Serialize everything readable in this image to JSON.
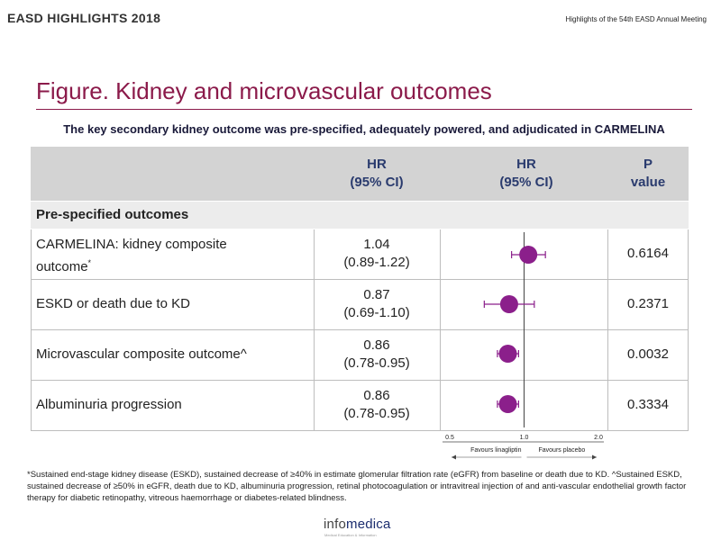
{
  "header": {
    "left": "EASD HIGHLIGHTS 2018",
    "right": "Highlights of the 54th EASD Annual Meeting"
  },
  "title": "Figure. Kidney and microvascular outcomes",
  "subtitle": "The key secondary kidney outcome was pre-specified, adequately powered, and adjudicated in CARMELINA",
  "table": {
    "headers": {
      "hr_line1": "HR",
      "hr_line2": "(95% CI)",
      "plot_line1": "HR",
      "plot_line2": "(95% CI)",
      "p_line1": "P",
      "p_line2": "value"
    },
    "section": "Pre-specified outcomes",
    "rows": [
      {
        "name_line1": "CARMELINA: kidney composite",
        "name_line2": "outcome",
        "name_sup": "*",
        "hr": "1.04",
        "ci": "(0.89-1.22)",
        "p": "0.6164"
      },
      {
        "name_line1": "ESKD or death due to KD",
        "name_line2": "",
        "name_sup": "",
        "hr": "0.87",
        "ci": "(0.69-1.10)",
        "p": "0.2371"
      },
      {
        "name_line1": "Microvascular composite outcome^",
        "name_line2": "",
        "name_sup": "",
        "hr": "0.86",
        "ci": "(0.78-0.95)",
        "p": "0.0032"
      },
      {
        "name_line1": "Albuminuria progression",
        "name_line2": "",
        "name_sup": "",
        "hr": "0.86",
        "ci": "(0.78-0.95)",
        "p": "0.3334"
      }
    ]
  },
  "chart_data": {
    "type": "forest",
    "xlim": [
      0.5,
      2.0
    ],
    "reference": 1.0,
    "tick_labels": [
      "0.5",
      "1.0",
      "2.0"
    ],
    "axis_left_label": "Favours linagliptin",
    "axis_right_label": "Favours placebo",
    "marker_color": "#8b1f8b",
    "points": [
      {
        "hr": 1.04,
        "lower": 0.89,
        "upper": 1.22
      },
      {
        "hr": 0.87,
        "lower": 0.69,
        "upper": 1.1
      },
      {
        "hr": 0.86,
        "lower": 0.78,
        "upper": 0.95
      },
      {
        "hr": 0.86,
        "lower": 0.78,
        "upper": 0.95
      }
    ]
  },
  "footnote": "*Sustained end-stage kidney disease (ESKD), sustained decrease of ≥40% in estimate glomerular filtration rate (eGFR) from baseline or death due to KD. ^Sustained ESKD, sustained decrease of ≥50% in eGFR, death due to KD, albuminuria progression, retinal photocoagulation or intravitreal injection of and anti-vascular endothelial growth factor therapy for diabetic retinopathy, vitreous haemorrhage or diabetes-related blindness.",
  "logo": {
    "part1": "info",
    "part2": "medica",
    "tagline": "Medical Education & Information"
  }
}
